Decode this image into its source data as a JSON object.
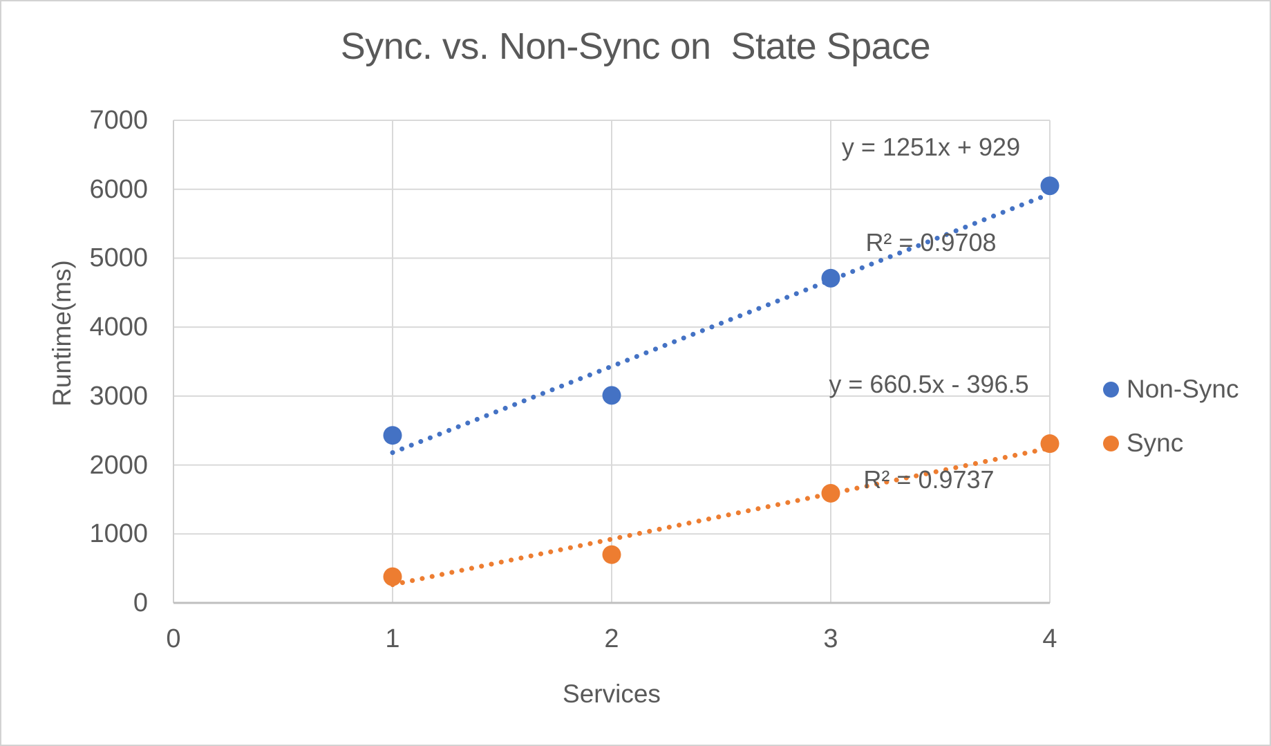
{
  "chart_data": {
    "type": "scatter",
    "title": "Sync. vs. Non-Sync on  State Space",
    "xlabel": "Services",
    "ylabel": "Runtime(ms)",
    "xlim": [
      0,
      4
    ],
    "ylim": [
      0,
      7000
    ],
    "x_ticks": [
      0,
      1,
      2,
      3,
      4
    ],
    "y_ticks": [
      0,
      1000,
      2000,
      3000,
      4000,
      5000,
      6000,
      7000
    ],
    "grid": true,
    "legend_position": "right",
    "series": [
      {
        "name": "Non-Sync",
        "color": "#4472C4",
        "x": [
          1,
          2,
          3,
          4
        ],
        "values": [
          2430,
          3010,
          4710,
          6050
        ],
        "trendline": {
          "type": "linear",
          "slope": 1251,
          "intercept": 929,
          "r2": 0.9708,
          "equation_label": "y = 1251x + 929",
          "r2_label": "R² = 0.9708",
          "style": "dotted"
        }
      },
      {
        "name": "Sync",
        "color": "#ED7D31",
        "x": [
          1,
          2,
          3,
          4
        ],
        "values": [
          380,
          700,
          1590,
          2310
        ],
        "trendline": {
          "type": "linear",
          "slope": 660.5,
          "intercept": -396.5,
          "r2": 0.9737,
          "equation_label": "y = 660.5x - 396.5",
          "r2_label": "R² = 0.9737",
          "style": "dotted"
        }
      }
    ],
    "colors": {
      "text": "#595959",
      "gridline": "#D9D9D9",
      "axis_line": "#BFBFBF"
    }
  }
}
